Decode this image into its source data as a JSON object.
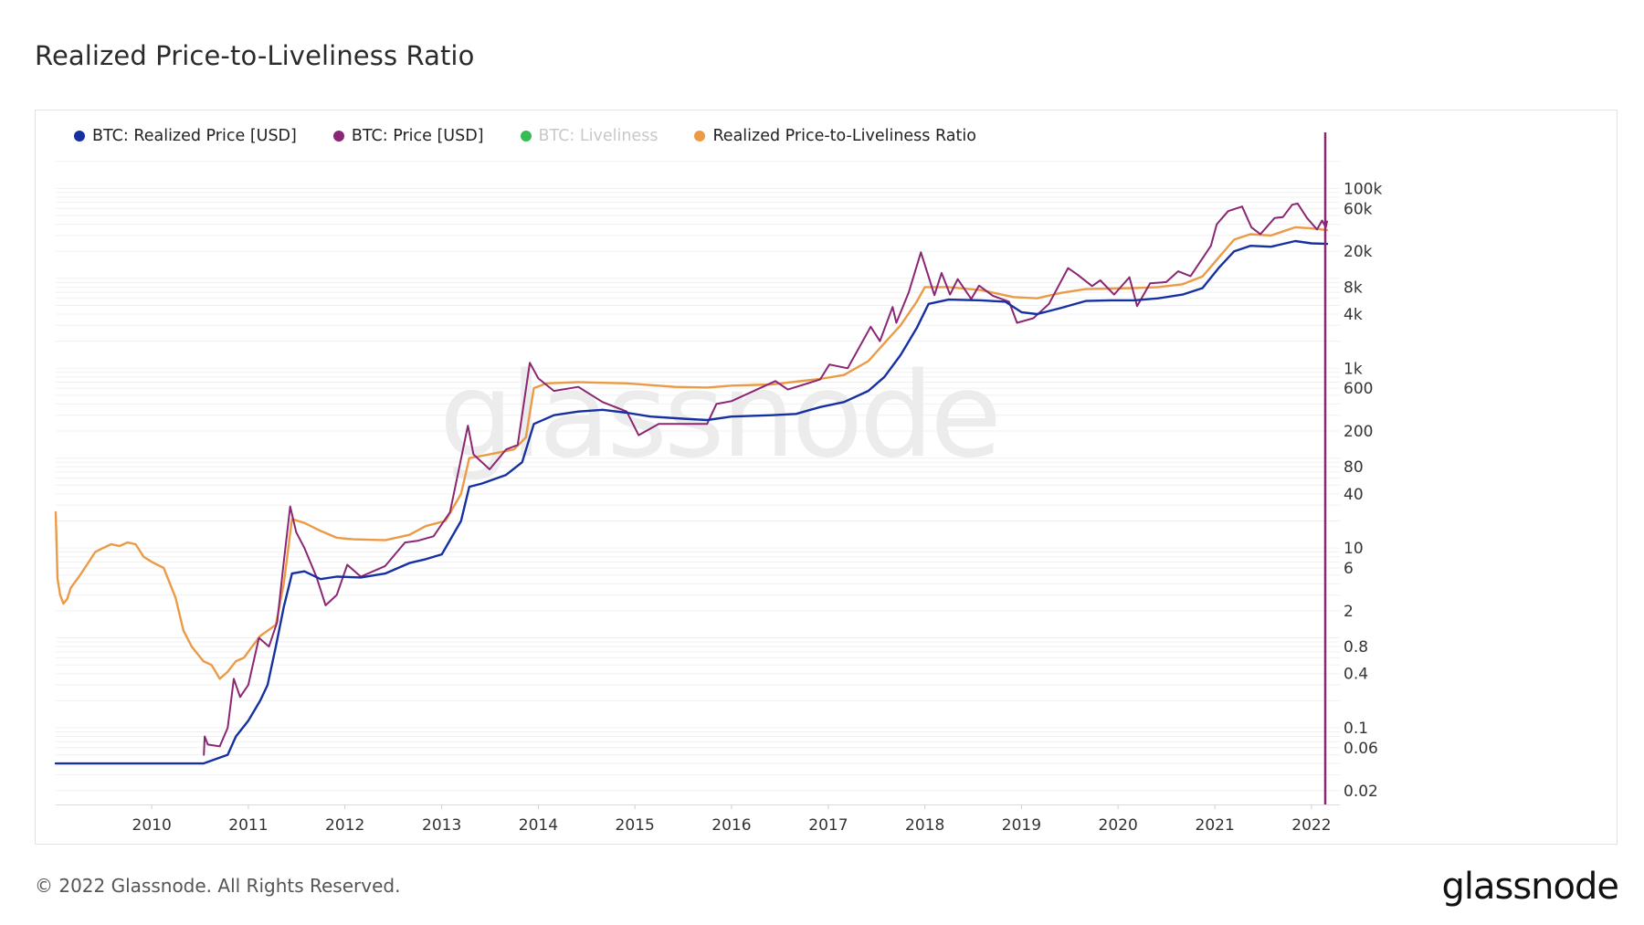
{
  "header": {
    "title": "Realized Price-to-Liveliness Ratio"
  },
  "footer": {
    "copyright": "© 2022 Glassnode. All Rights Reserved.",
    "brand": "glassnode"
  },
  "watermark": "glassnode",
  "colors": {
    "realized_price": "#1530a0",
    "price": "#8b2673",
    "liveliness": "#2cb84a",
    "ratio": "#eb9a45",
    "cursor": "#8b2673",
    "grid": "#f0f0f0"
  },
  "chart_data": {
    "type": "line",
    "title": "Realized Price-to-Liveliness Ratio",
    "xlabel": "",
    "ylabel": "",
    "y_scale": "log",
    "ylim": [
      0.014,
      240000
    ],
    "xlim": [
      "2009-01-03",
      "2022-03-01"
    ],
    "x_ticks": [
      "2010",
      "2011",
      "2012",
      "2013",
      "2014",
      "2015",
      "2016",
      "2017",
      "2018",
      "2019",
      "2020",
      "2021",
      "2022"
    ],
    "y_ticks": [
      {
        "value": 100000,
        "label": "100k"
      },
      {
        "value": 60000,
        "label": "60k"
      },
      {
        "value": 20000,
        "label": "20k"
      },
      {
        "value": 8000,
        "label": "8k"
      },
      {
        "value": 4000,
        "label": "4k"
      },
      {
        "value": 1000,
        "label": "1k"
      },
      {
        "value": 600,
        "label": "600"
      },
      {
        "value": 200,
        "label": "200"
      },
      {
        "value": 80,
        "label": "80"
      },
      {
        "value": 40,
        "label": "40"
      },
      {
        "value": 10,
        "label": "10"
      },
      {
        "value": 6,
        "label": "6"
      },
      {
        "value": 2,
        "label": "2"
      },
      {
        "value": 0.8,
        "label": "0.8"
      },
      {
        "value": 0.4,
        "label": "0.4"
      },
      {
        "value": 0.1,
        "label": "0.1"
      },
      {
        "value": 0.06,
        "label": "0.06"
      },
      {
        "value": 0.02,
        "label": "0.02"
      }
    ],
    "grid": true,
    "legend_position": "top-left",
    "series": [
      {
        "name": "BTC: Realized Price [USD]",
        "color": "#1530a0",
        "active": true,
        "points": [
          [
            "2009-01-03",
            0.04
          ],
          [
            "2010-07-15",
            0.04
          ],
          [
            "2010-09-01",
            0.045
          ],
          [
            "2010-10-15",
            0.05
          ],
          [
            "2010-11-15",
            0.08
          ],
          [
            "2011-01-01",
            0.12
          ],
          [
            "2011-02-15",
            0.2
          ],
          [
            "2011-03-15",
            0.3
          ],
          [
            "2011-04-15",
            0.8
          ],
          [
            "2011-05-15",
            2.2
          ],
          [
            "2011-06-15",
            5.2
          ],
          [
            "2011-08-01",
            5.5
          ],
          [
            "2011-10-01",
            4.5
          ],
          [
            "2011-12-01",
            4.8
          ],
          [
            "2012-03-01",
            4.7
          ],
          [
            "2012-06-01",
            5.2
          ],
          [
            "2012-09-01",
            6.8
          ],
          [
            "2012-11-01",
            7.5
          ],
          [
            "2013-01-01",
            8.5
          ],
          [
            "2013-03-15",
            20
          ],
          [
            "2013-04-15",
            48
          ],
          [
            "2013-06-01",
            52
          ],
          [
            "2013-09-01",
            65
          ],
          [
            "2013-11-01",
            90
          ],
          [
            "2013-12-15",
            240
          ],
          [
            "2014-03-01",
            300
          ],
          [
            "2014-06-01",
            330
          ],
          [
            "2014-09-01",
            345
          ],
          [
            "2014-12-01",
            320
          ],
          [
            "2015-03-01",
            290
          ],
          [
            "2015-07-01",
            275
          ],
          [
            "2015-10-01",
            265
          ],
          [
            "2016-01-01",
            290
          ],
          [
            "2016-06-01",
            300
          ],
          [
            "2016-09-01",
            310
          ],
          [
            "2016-12-01",
            370
          ],
          [
            "2017-03-01",
            420
          ],
          [
            "2017-06-01",
            560
          ],
          [
            "2017-08-01",
            800
          ],
          [
            "2017-10-01",
            1400
          ],
          [
            "2017-12-01",
            2800
          ],
          [
            "2018-01-15",
            5200
          ],
          [
            "2018-04-01",
            5800
          ],
          [
            "2018-08-01",
            5700
          ],
          [
            "2018-11-01",
            5500
          ],
          [
            "2019-01-01",
            4200
          ],
          [
            "2019-03-01",
            4000
          ],
          [
            "2019-06-01",
            4700
          ],
          [
            "2019-09-01",
            5600
          ],
          [
            "2019-12-01",
            5700
          ],
          [
            "2020-03-01",
            5700
          ],
          [
            "2020-06-01",
            6000
          ],
          [
            "2020-09-01",
            6600
          ],
          [
            "2020-11-15",
            7800
          ],
          [
            "2021-01-15",
            13000
          ],
          [
            "2021-03-15",
            20000
          ],
          [
            "2021-05-15",
            23000
          ],
          [
            "2021-08-01",
            22500
          ],
          [
            "2021-11-01",
            26000
          ],
          [
            "2022-01-01",
            24500
          ],
          [
            "2022-03-01",
            24200
          ]
        ]
      },
      {
        "name": "BTC: Price [USD]",
        "color": "#8b2673",
        "active": true,
        "points": [
          [
            "2010-07-17",
            0.05
          ],
          [
            "2010-07-20",
            0.08
          ],
          [
            "2010-08-01",
            0.065
          ],
          [
            "2010-09-15",
            0.062
          ],
          [
            "2010-10-15",
            0.1
          ],
          [
            "2010-11-07",
            0.35
          ],
          [
            "2010-12-01",
            0.22
          ],
          [
            "2011-01-01",
            0.3
          ],
          [
            "2011-02-10",
            1.0
          ],
          [
            "2011-03-20",
            0.8
          ],
          [
            "2011-04-20",
            1.5
          ],
          [
            "2011-05-15",
            7
          ],
          [
            "2011-06-08",
            29
          ],
          [
            "2011-07-01",
            15
          ],
          [
            "2011-08-01",
            10
          ],
          [
            "2011-09-15",
            4.8
          ],
          [
            "2011-10-20",
            2.3
          ],
          [
            "2011-12-01",
            3
          ],
          [
            "2012-01-10",
            6.5
          ],
          [
            "2012-03-01",
            4.8
          ],
          [
            "2012-06-01",
            6.3
          ],
          [
            "2012-08-15",
            11.5
          ],
          [
            "2012-10-01",
            12
          ],
          [
            "2012-12-01",
            13.5
          ],
          [
            "2013-02-01",
            25
          ],
          [
            "2013-04-10",
            230
          ],
          [
            "2013-05-01",
            110
          ],
          [
            "2013-07-01",
            75
          ],
          [
            "2013-09-01",
            125
          ],
          [
            "2013-10-15",
            140
          ],
          [
            "2013-11-30",
            1150
          ],
          [
            "2014-01-01",
            770
          ],
          [
            "2014-03-01",
            560
          ],
          [
            "2014-06-01",
            620
          ],
          [
            "2014-09-01",
            420
          ],
          [
            "2014-12-01",
            330
          ],
          [
            "2015-01-15",
            180
          ],
          [
            "2015-04-01",
            240
          ],
          [
            "2015-08-01",
            240
          ],
          [
            "2015-10-01",
            240
          ],
          [
            "2015-11-05",
            400
          ],
          [
            "2016-01-01",
            430
          ],
          [
            "2016-06-15",
            720
          ],
          [
            "2016-08-01",
            580
          ],
          [
            "2016-12-01",
            750
          ],
          [
            "2017-01-05",
            1100
          ],
          [
            "2017-03-15",
            1000
          ],
          [
            "2017-06-10",
            2900
          ],
          [
            "2017-07-15",
            2000
          ],
          [
            "2017-09-01",
            4800
          ],
          [
            "2017-09-15",
            3200
          ],
          [
            "2017-11-01",
            7000
          ],
          [
            "2017-12-17",
            19500
          ],
          [
            "2018-02-06",
            6500
          ],
          [
            "2018-03-05",
            11500
          ],
          [
            "2018-04-06",
            6600
          ],
          [
            "2018-05-05",
            9800
          ],
          [
            "2018-06-25",
            5900
          ],
          [
            "2018-07-25",
            8300
          ],
          [
            "2018-09-15",
            6400
          ],
          [
            "2018-11-15",
            5500
          ],
          [
            "2018-12-15",
            3200
          ],
          [
            "2019-02-15",
            3600
          ],
          [
            "2019-04-15",
            5200
          ],
          [
            "2019-06-26",
            13000
          ],
          [
            "2019-08-01",
            11000
          ],
          [
            "2019-09-25",
            8200
          ],
          [
            "2019-10-26",
            9500
          ],
          [
            "2019-12-17",
            6600
          ],
          [
            "2020-02-13",
            10300
          ],
          [
            "2020-03-13",
            4900
          ],
          [
            "2020-05-01",
            8800
          ],
          [
            "2020-07-01",
            9100
          ],
          [
            "2020-08-15",
            12000
          ],
          [
            "2020-10-01",
            10600
          ],
          [
            "2020-12-17",
            23000
          ],
          [
            "2021-01-08",
            40000
          ],
          [
            "2021-02-20",
            56000
          ],
          [
            "2021-04-14",
            63000
          ],
          [
            "2021-05-19",
            37000
          ],
          [
            "2021-06-22",
            31000
          ],
          [
            "2021-08-15",
            47000
          ],
          [
            "2021-09-15",
            48000
          ],
          [
            "2021-10-20",
            66000
          ],
          [
            "2021-11-10",
            68000
          ],
          [
            "2021-12-15",
            47000
          ],
          [
            "2022-01-22",
            35000
          ],
          [
            "2022-02-10",
            44000
          ],
          [
            "2022-02-24",
            37000
          ],
          [
            "2022-03-01",
            43000
          ]
        ]
      },
      {
        "name": "BTC: Liveliness",
        "color": "#2cb84a",
        "active": false,
        "points": []
      },
      {
        "name": "Realized Price-to-Liveliness Ratio",
        "color": "#eb9a45",
        "active": true,
        "points": [
          [
            "2009-01-03",
            25
          ],
          [
            "2009-01-10",
            4.5
          ],
          [
            "2009-01-20",
            3
          ],
          [
            "2009-02-01",
            2.4
          ],
          [
            "2009-02-15",
            2.7
          ],
          [
            "2009-03-01",
            3.6
          ],
          [
            "2009-04-01",
            4.8
          ],
          [
            "2009-05-01",
            6.5
          ],
          [
            "2009-06-01",
            9
          ],
          [
            "2009-07-01",
            10
          ],
          [
            "2009-08-01",
            11
          ],
          [
            "2009-09-01",
            10.5
          ],
          [
            "2009-10-01",
            11.5
          ],
          [
            "2009-11-01",
            11
          ],
          [
            "2009-12-01",
            8
          ],
          [
            "2010-01-01",
            7
          ],
          [
            "2010-02-15",
            6
          ],
          [
            "2010-04-01",
            2.8
          ],
          [
            "2010-05-01",
            1.2
          ],
          [
            "2010-06-01",
            0.8
          ],
          [
            "2010-07-15",
            0.55
          ],
          [
            "2010-08-15",
            0.5
          ],
          [
            "2010-09-15",
            0.35
          ],
          [
            "2010-10-15",
            0.42
          ],
          [
            "2010-11-15",
            0.55
          ],
          [
            "2010-12-15",
            0.6
          ],
          [
            "2011-01-15",
            0.8
          ],
          [
            "2011-02-15",
            1.05
          ],
          [
            "2011-03-15",
            1.2
          ],
          [
            "2011-04-15",
            1.4
          ],
          [
            "2011-05-15",
            4
          ],
          [
            "2011-06-15",
            21
          ],
          [
            "2011-08-01",
            19
          ],
          [
            "2011-10-01",
            15.5
          ],
          [
            "2011-12-01",
            13
          ],
          [
            "2012-02-01",
            12.5
          ],
          [
            "2012-06-01",
            12.2
          ],
          [
            "2012-09-01",
            14
          ],
          [
            "2012-11-01",
            17.5
          ],
          [
            "2013-01-15",
            20
          ],
          [
            "2013-03-15",
            40
          ],
          [
            "2013-04-15",
            100
          ],
          [
            "2013-07-01",
            110
          ],
          [
            "2013-10-01",
            125
          ],
          [
            "2013-11-15",
            170
          ],
          [
            "2013-12-15",
            600
          ],
          [
            "2014-02-01",
            680
          ],
          [
            "2014-06-01",
            700
          ],
          [
            "2014-12-01",
            680
          ],
          [
            "2015-06-01",
            620
          ],
          [
            "2015-10-01",
            610
          ],
          [
            "2016-01-01",
            640
          ],
          [
            "2016-06-01",
            660
          ],
          [
            "2016-12-01",
            760
          ],
          [
            "2017-03-01",
            840
          ],
          [
            "2017-06-01",
            1200
          ],
          [
            "2017-08-01",
            1900
          ],
          [
            "2017-10-01",
            3000
          ],
          [
            "2017-12-01",
            5500
          ],
          [
            "2018-01-01",
            8000
          ],
          [
            "2018-04-01",
            8000
          ],
          [
            "2018-08-01",
            7400
          ],
          [
            "2018-12-01",
            6200
          ],
          [
            "2019-03-01",
            6000
          ],
          [
            "2019-06-01",
            6900
          ],
          [
            "2019-09-01",
            7600
          ],
          [
            "2019-12-01",
            7700
          ],
          [
            "2020-03-01",
            7800
          ],
          [
            "2020-06-01",
            8000
          ],
          [
            "2020-09-01",
            8600
          ],
          [
            "2020-11-15",
            10500
          ],
          [
            "2021-01-15",
            17000
          ],
          [
            "2021-03-15",
            27000
          ],
          [
            "2021-05-15",
            31000
          ],
          [
            "2021-08-01",
            30000
          ],
          [
            "2021-11-01",
            37000
          ],
          [
            "2022-01-01",
            36000
          ],
          [
            "2022-03-01",
            34500
          ]
        ]
      }
    ]
  }
}
